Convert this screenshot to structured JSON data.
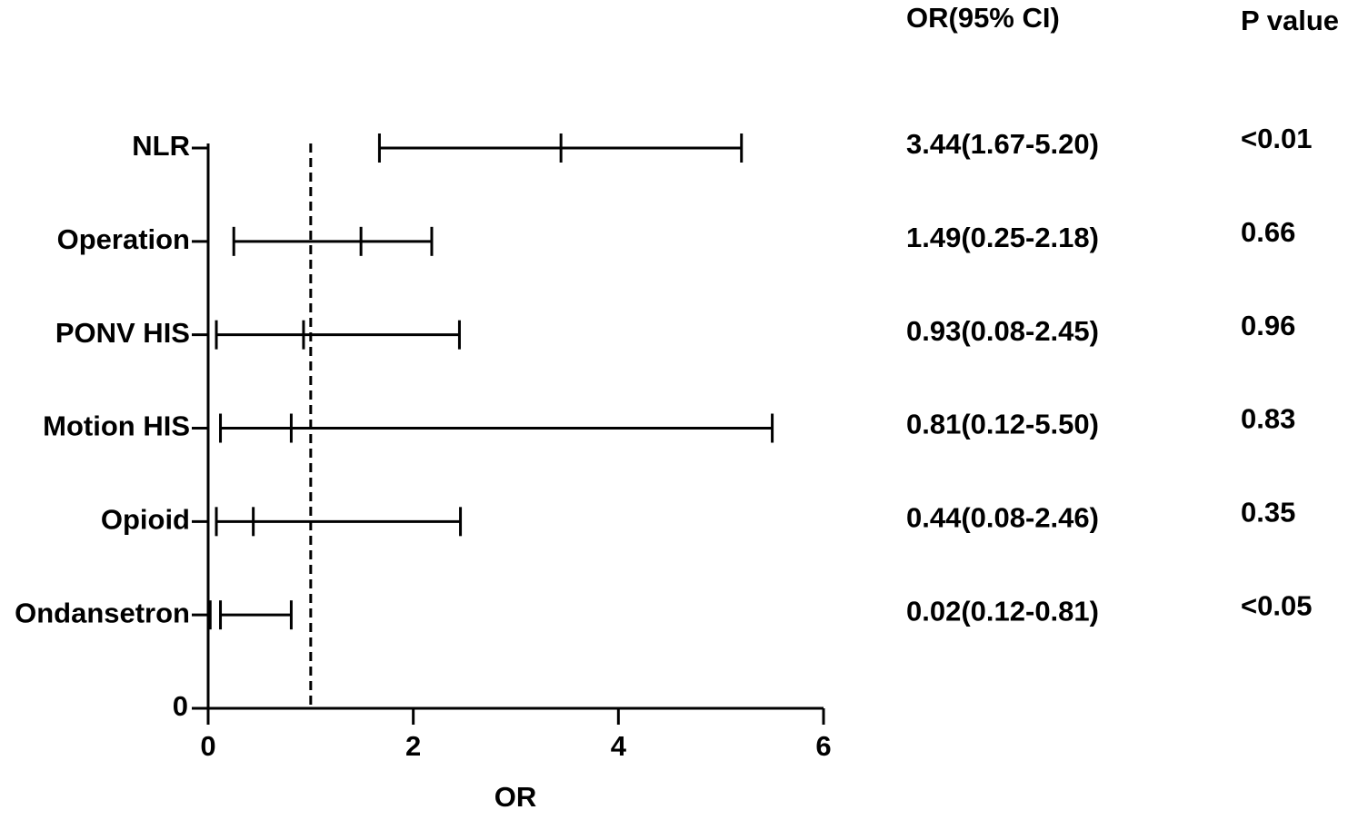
{
  "chart_data": {
    "type": "forest",
    "categories": [
      "NLR",
      "Operation",
      "PONV HIS",
      "Motion HIS",
      "Opioid",
      "Ondansetron"
    ],
    "values": [
      3.44,
      1.49,
      0.93,
      0.81,
      0.44,
      0.02
    ],
    "lower": [
      1.67,
      0.25,
      0.08,
      0.12,
      0.08,
      0.12
    ],
    "upper": [
      5.2,
      2.18,
      2.45,
      5.5,
      2.46,
      0.81
    ],
    "ci_header": "OR(95% CI)",
    "ci_labels": [
      "3.44(1.67-5.20)",
      "1.49(0.25-2.18)",
      "0.93(0.08-2.45)",
      "0.81(0.12-5.50)",
      "0.44(0.08-2.46)",
      "0.02(0.12-0.81)"
    ],
    "p_header": "P value",
    "p_labels": [
      "<0.01",
      "0.66",
      "0.96",
      "0.83",
      "0.35",
      "<0.05"
    ],
    "x_label": "OR",
    "xlim": [
      0,
      6
    ],
    "xticks": [
      0,
      2,
      4,
      6
    ],
    "ylim": [
      0,
      6
    ],
    "yticks": [
      0
    ],
    "reference_line": 1,
    "color": "#000000"
  }
}
